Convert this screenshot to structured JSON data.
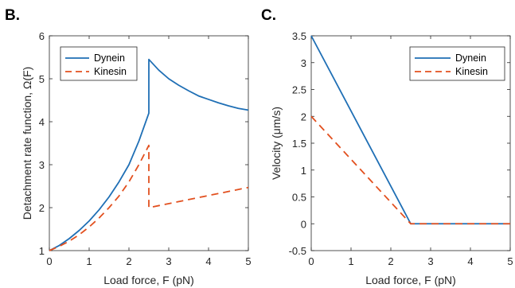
{
  "chart_data": [
    {
      "panel_label": "B.",
      "type": "line",
      "xlabel": "Load force, F (pN)",
      "ylabel": "Detachment rate function, Ω(F)",
      "xlim": [
        0,
        5
      ],
      "ylim": [
        1,
        6
      ],
      "xticks": [
        "0",
        "1",
        "2",
        "3",
        "4",
        "5"
      ],
      "yticks": [
        "1",
        "2",
        "3",
        "4",
        "5",
        "6"
      ],
      "legend_position": "top-left",
      "series": [
        {
          "name": "Dynein",
          "color": "#1f6fb5",
          "style": "solid",
          "points": [
            [
              0,
              1.0
            ],
            [
              0.25,
              1.12
            ],
            [
              0.5,
              1.28
            ],
            [
              0.75,
              1.47
            ],
            [
              1.0,
              1.69
            ],
            [
              1.25,
              1.95
            ],
            [
              1.5,
              2.25
            ],
            [
              1.75,
              2.6
            ],
            [
              2.0,
              3.0
            ],
            [
              2.25,
              3.55
            ],
            [
              2.5,
              4.2
            ],
            [
              2.5,
              5.45
            ],
            [
              2.75,
              5.2
            ],
            [
              3.0,
              5.0
            ],
            [
              3.25,
              4.85
            ],
            [
              3.5,
              4.72
            ],
            [
              3.75,
              4.6
            ],
            [
              4.0,
              4.52
            ],
            [
              4.25,
              4.44
            ],
            [
              4.5,
              4.37
            ],
            [
              4.75,
              4.31
            ],
            [
              5.0,
              4.27
            ]
          ]
        },
        {
          "name": "Kinesin",
          "color": "#e2501f",
          "style": "dashed",
          "points": [
            [
              0,
              1.0
            ],
            [
              0.25,
              1.1
            ],
            [
              0.5,
              1.22
            ],
            [
              0.75,
              1.37
            ],
            [
              1.0,
              1.55
            ],
            [
              1.25,
              1.76
            ],
            [
              1.5,
              2.0
            ],
            [
              1.75,
              2.27
            ],
            [
              2.0,
              2.6
            ],
            [
              2.25,
              3.0
            ],
            [
              2.5,
              3.45
            ],
            [
              2.5,
              2.0
            ],
            [
              5.0,
              2.47
            ]
          ]
        }
      ]
    },
    {
      "panel_label": "C.",
      "type": "line",
      "xlabel": "Load force, F (pN)",
      "ylabel": "Velocity (μm/s)",
      "xlim": [
        0,
        5
      ],
      "ylim": [
        -0.5,
        3.5
      ],
      "xticks": [
        "0",
        "1",
        "2",
        "3",
        "4",
        "5"
      ],
      "yticks": [
        "-0.5",
        "0",
        "0.5",
        "1",
        "1.5",
        "2",
        "2.5",
        "3",
        "3.5"
      ],
      "legend_position": "top-right",
      "series": [
        {
          "name": "Dynein",
          "color": "#1f6fb5",
          "style": "solid",
          "points": [
            [
              0,
              3.5
            ],
            [
              2.5,
              0
            ],
            [
              5.0,
              0
            ]
          ]
        },
        {
          "name": "Kinesin",
          "color": "#e2501f",
          "style": "dashed",
          "points": [
            [
              0,
              2.0
            ],
            [
              2.5,
              0
            ],
            [
              5.0,
              0
            ]
          ]
        }
      ]
    }
  ]
}
